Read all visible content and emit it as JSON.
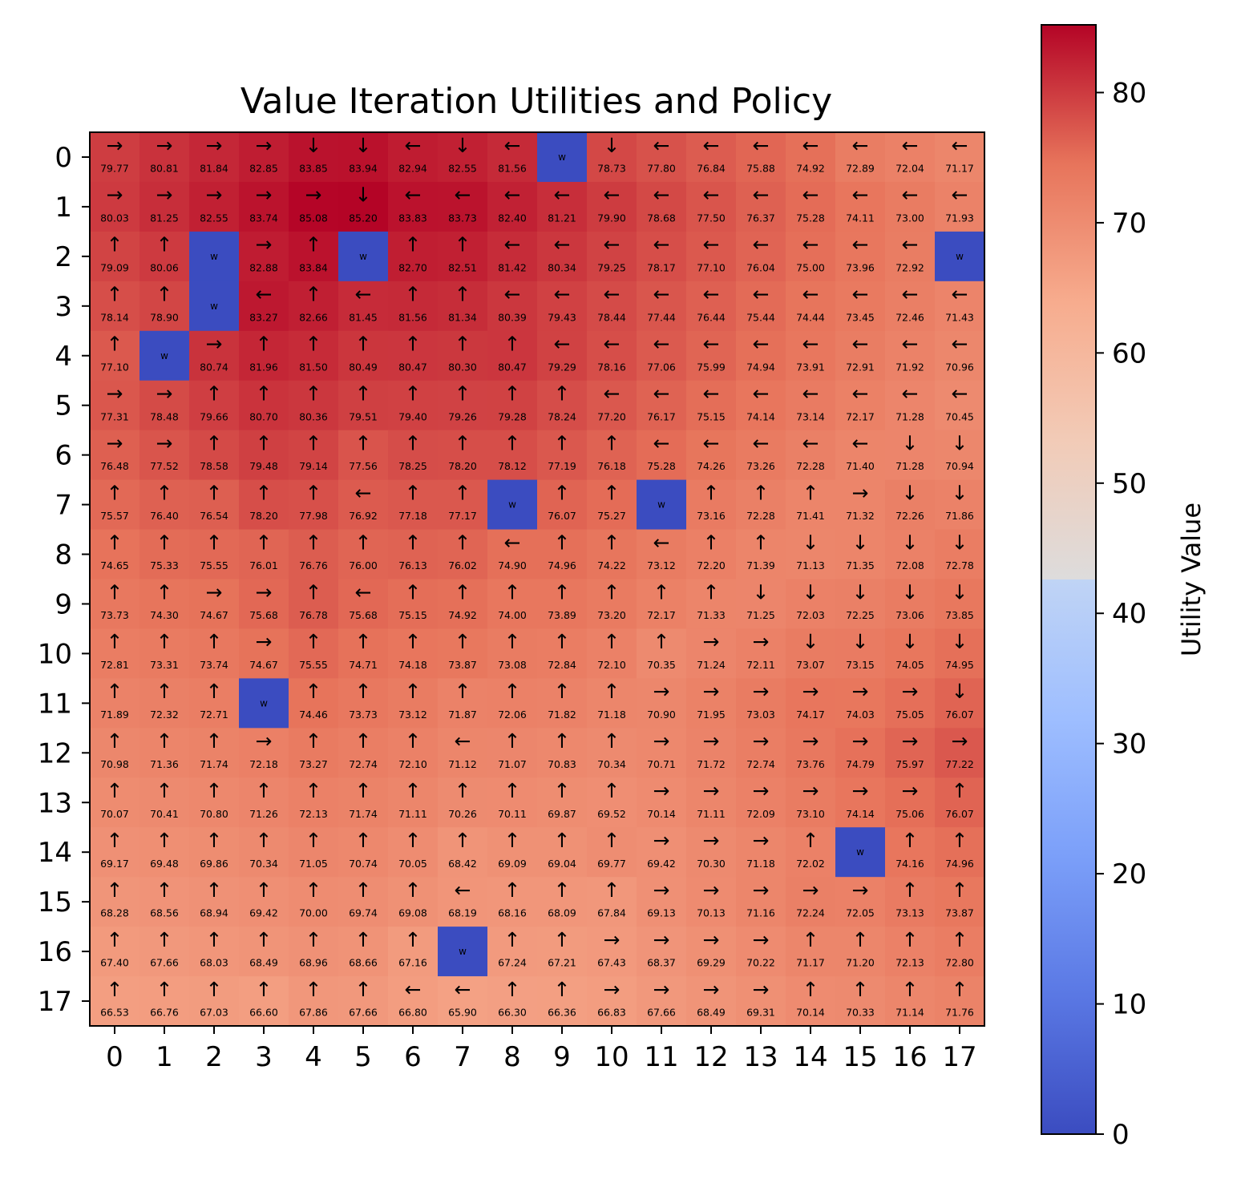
{
  "chart_data": {
    "type": "heatmap",
    "title": "Value Iteration Utilities and Policy",
    "xlabel": "",
    "ylabel": "",
    "x_ticks": [
      "0",
      "1",
      "2",
      "3",
      "4",
      "5",
      "6",
      "7",
      "8",
      "9",
      "10",
      "11",
      "12",
      "13",
      "14",
      "15",
      "16",
      "17"
    ],
    "y_ticks": [
      "0",
      "1",
      "2",
      "3",
      "4",
      "5",
      "6",
      "7",
      "8",
      "9",
      "10",
      "11",
      "12",
      "13",
      "14",
      "15",
      "16",
      "17"
    ],
    "colormap": "coolwarm",
    "colorbar": {
      "label": "Utility Value",
      "range": [
        0,
        85.2
      ],
      "ticks": [
        "0",
        "10",
        "20",
        "30",
        "40",
        "50",
        "60",
        "70",
        "80"
      ]
    },
    "wall_label": "w",
    "walls": [
      [
        0,
        9
      ],
      [
        2,
        2
      ],
      [
        2,
        5
      ],
      [
        2,
        17
      ],
      [
        3,
        2
      ],
      [
        4,
        1
      ],
      [
        7,
        8
      ],
      [
        7,
        11
      ],
      [
        11,
        3
      ],
      [
        14,
        15
      ],
      [
        16,
        7
      ]
    ],
    "values": [
      [
        "79.77",
        "80.81",
        "81.84",
        "82.85",
        "83.85",
        "83.94",
        "82.94",
        "82.55",
        "81.56",
        "",
        "78.73",
        "77.80",
        "76.84",
        "75.88",
        "74.92",
        "72.89",
        "72.04",
        "71.17"
      ],
      [
        "80.03",
        "81.25",
        "82.55",
        "83.74",
        "85.08",
        "85.20",
        "83.83",
        "83.73",
        "82.40",
        "81.21",
        "79.90",
        "78.68",
        "77.50",
        "76.37",
        "75.28",
        "74.11",
        "73.00",
        "71.93"
      ],
      [
        "79.09",
        "80.06",
        "",
        "82.88",
        "83.84",
        "",
        "82.70",
        "82.51",
        "81.42",
        "80.34",
        "79.25",
        "78.17",
        "77.10",
        "76.04",
        "75.00",
        "73.96",
        "72.92",
        ""
      ],
      [
        "78.14",
        "78.90",
        "",
        "83.27",
        "82.66",
        "81.45",
        "81.56",
        "81.34",
        "80.39",
        "79.43",
        "78.44",
        "77.44",
        "76.44",
        "75.44",
        "74.44",
        "73.45",
        "72.46",
        "71.43"
      ],
      [
        "77.10",
        "",
        "80.74",
        "81.96",
        "81.50",
        "80.49",
        "80.47",
        "80.30",
        "80.47",
        "79.29",
        "78.16",
        "77.06",
        "75.99",
        "74.94",
        "73.91",
        "72.91",
        "71.92",
        "70.96"
      ],
      [
        "77.31",
        "78.48",
        "79.66",
        "80.70",
        "80.36",
        "79.51",
        "79.40",
        "79.26",
        "79.28",
        "78.24",
        "77.20",
        "76.17",
        "75.15",
        "74.14",
        "73.14",
        "72.17",
        "71.28",
        "70.45"
      ],
      [
        "76.48",
        "77.52",
        "78.58",
        "79.48",
        "79.14",
        "77.56",
        "78.25",
        "78.20",
        "78.12",
        "77.19",
        "76.18",
        "75.28",
        "74.26",
        "73.26",
        "72.28",
        "71.40",
        "71.28",
        "70.94"
      ],
      [
        "75.57",
        "76.40",
        "76.54",
        "78.20",
        "77.98",
        "76.92",
        "77.18",
        "77.17",
        "",
        "76.07",
        "75.27",
        "",
        "73.16",
        "72.28",
        "71.41",
        "71.32",
        "72.26",
        "71.86"
      ],
      [
        "74.65",
        "75.33",
        "75.55",
        "76.01",
        "76.76",
        "76.00",
        "76.13",
        "76.02",
        "74.90",
        "74.96",
        "74.22",
        "73.12",
        "72.20",
        "71.39",
        "71.13",
        "71.35",
        "72.08",
        "72.78"
      ],
      [
        "73.73",
        "74.30",
        "74.67",
        "75.68",
        "76.78",
        "75.68",
        "75.15",
        "74.92",
        "74.00",
        "73.89",
        "73.20",
        "72.17",
        "71.33",
        "71.25",
        "72.03",
        "72.25",
        "73.06",
        "73.85"
      ],
      [
        "72.81",
        "73.31",
        "73.74",
        "74.67",
        "75.55",
        "74.71",
        "74.18",
        "73.87",
        "73.08",
        "72.84",
        "72.10",
        "70.35",
        "71.24",
        "72.11",
        "73.07",
        "73.15",
        "74.05",
        "74.95"
      ],
      [
        "71.89",
        "72.32",
        "72.71",
        "",
        "74.46",
        "73.73",
        "73.12",
        "71.87",
        "72.06",
        "71.82",
        "71.18",
        "70.90",
        "71.95",
        "73.03",
        "74.17",
        "74.03",
        "75.05",
        "76.07"
      ],
      [
        "70.98",
        "71.36",
        "71.74",
        "72.18",
        "73.27",
        "72.74",
        "72.10",
        "71.12",
        "71.07",
        "70.83",
        "70.34",
        "70.71",
        "71.72",
        "72.74",
        "73.76",
        "74.79",
        "75.97",
        "77.22"
      ],
      [
        "70.07",
        "70.41",
        "70.80",
        "71.26",
        "72.13",
        "71.74",
        "71.11",
        "70.26",
        "70.11",
        "69.87",
        "69.52",
        "70.14",
        "71.11",
        "72.09",
        "73.10",
        "74.14",
        "75.06",
        "76.07"
      ],
      [
        "69.17",
        "69.48",
        "69.86",
        "70.34",
        "71.05",
        "70.74",
        "70.05",
        "68.42",
        "69.09",
        "69.04",
        "69.77",
        "69.42",
        "70.30",
        "71.18",
        "72.02",
        "",
        "74.16",
        "74.96"
      ],
      [
        "68.28",
        "68.56",
        "68.94",
        "69.42",
        "70.00",
        "69.74",
        "69.08",
        "68.19",
        "68.16",
        "68.09",
        "67.84",
        "69.13",
        "70.13",
        "71.16",
        "72.24",
        "72.05",
        "73.13",
        "73.87"
      ],
      [
        "67.40",
        "67.66",
        "68.03",
        "68.49",
        "68.96",
        "68.66",
        "67.16",
        "",
        "67.24",
        "67.21",
        "67.43",
        "68.37",
        "69.29",
        "70.22",
        "71.17",
        "71.20",
        "72.13",
        "72.80"
      ],
      [
        "66.53",
        "66.76",
        "67.03",
        "66.60",
        "67.86",
        "67.66",
        "66.80",
        "65.90",
        "66.30",
        "66.36",
        "66.83",
        "67.66",
        "68.49",
        "69.31",
        "70.14",
        "70.33",
        "71.14",
        "71.76"
      ]
    ],
    "policy": [
      [
        "→",
        "→",
        "→",
        "→",
        "↓",
        "↓",
        "←",
        "↓",
        "←",
        "",
        "↓",
        "←",
        "←",
        "←",
        "←",
        "←",
        "←",
        "←"
      ],
      [
        "→",
        "→",
        "→",
        "→",
        "→",
        "↓",
        "←",
        "←",
        "←",
        "←",
        "←",
        "←",
        "←",
        "←",
        "←",
        "←",
        "←",
        "←"
      ],
      [
        "↑",
        "↑",
        "",
        "→",
        "↑",
        "",
        "↑",
        "↑",
        "←",
        "←",
        "←",
        "←",
        "←",
        "←",
        "←",
        "←",
        "←",
        ""
      ],
      [
        "↑",
        "↑",
        "",
        "←",
        "↑",
        "←",
        "↑",
        "↑",
        "←",
        "←",
        "←",
        "←",
        "←",
        "←",
        "←",
        "←",
        "←",
        "←"
      ],
      [
        "↑",
        "",
        "→",
        "↑",
        "↑",
        "↑",
        "↑",
        "↑",
        "↑",
        "←",
        "←",
        "←",
        "←",
        "←",
        "←",
        "←",
        "←",
        "←"
      ],
      [
        "→",
        "→",
        "↑",
        "↑",
        "↑",
        "↑",
        "↑",
        "↑",
        "↑",
        "↑",
        "←",
        "←",
        "←",
        "←",
        "←",
        "←",
        "←",
        "←"
      ],
      [
        "→",
        "→",
        "↑",
        "↑",
        "↑",
        "↑",
        "↑",
        "↑",
        "↑",
        "↑",
        "↑",
        "←",
        "←",
        "←",
        "←",
        "←",
        "↓",
        "↓"
      ],
      [
        "↑",
        "↑",
        "↑",
        "↑",
        "↑",
        "←",
        "↑",
        "↑",
        "",
        "↑",
        "↑",
        "",
        "↑",
        "↑",
        "↑",
        "→",
        "↓",
        "↓"
      ],
      [
        "↑",
        "↑",
        "↑",
        "↑",
        "↑",
        "↑",
        "↑",
        "↑",
        "←",
        "↑",
        "↑",
        "←",
        "↑",
        "↑",
        "↓",
        "↓",
        "↓",
        "↓"
      ],
      [
        "↑",
        "↑",
        "→",
        "→",
        "↑",
        "←",
        "↑",
        "↑",
        "↑",
        "↑",
        "↑",
        "↑",
        "↑",
        "↓",
        "↓",
        "↓",
        "↓",
        "↓"
      ],
      [
        "↑",
        "↑",
        "↑",
        "→",
        "↑",
        "↑",
        "↑",
        "↑",
        "↑",
        "↑",
        "↑",
        "↑",
        "→",
        "→",
        "↓",
        "↓",
        "↓",
        "↓"
      ],
      [
        "↑",
        "↑",
        "↑",
        "",
        "↑",
        "↑",
        "↑",
        "↑",
        "↑",
        "↑",
        "↑",
        "→",
        "→",
        "→",
        "→",
        "→",
        "→",
        "↓"
      ],
      [
        "↑",
        "↑",
        "↑",
        "→",
        "↑",
        "↑",
        "↑",
        "←",
        "↑",
        "↑",
        "↑",
        "→",
        "→",
        "→",
        "→",
        "→",
        "→",
        "→"
      ],
      [
        "↑",
        "↑",
        "↑",
        "↑",
        "↑",
        "↑",
        "↑",
        "↑",
        "↑",
        "↑",
        "↑",
        "→",
        "→",
        "→",
        "→",
        "→",
        "→",
        "↑"
      ],
      [
        "↑",
        "↑",
        "↑",
        "↑",
        "↑",
        "↑",
        "↑",
        "↑",
        "↑",
        "↑",
        "↑",
        "→",
        "→",
        "→",
        "↑",
        "",
        "↑",
        "↑"
      ],
      [
        "↑",
        "↑",
        "↑",
        "↑",
        "↑",
        "↑",
        "↑",
        "←",
        "↑",
        "↑",
        "↑",
        "→",
        "→",
        "→",
        "→",
        "→",
        "↑",
        "↑"
      ],
      [
        "↑",
        "↑",
        "↑",
        "↑",
        "↑",
        "↑",
        "↑",
        "",
        "↑",
        "↑",
        "→",
        "→",
        "→",
        "→",
        "↑",
        "↑",
        "↑",
        "↑"
      ],
      [
        "↑",
        "↑",
        "↑",
        "↑",
        "↑",
        "↑",
        "←",
        "←",
        "↑",
        "↑",
        "→",
        "→",
        "→",
        "→",
        "↑",
        "↑",
        "↑",
        "↑"
      ]
    ]
  }
}
